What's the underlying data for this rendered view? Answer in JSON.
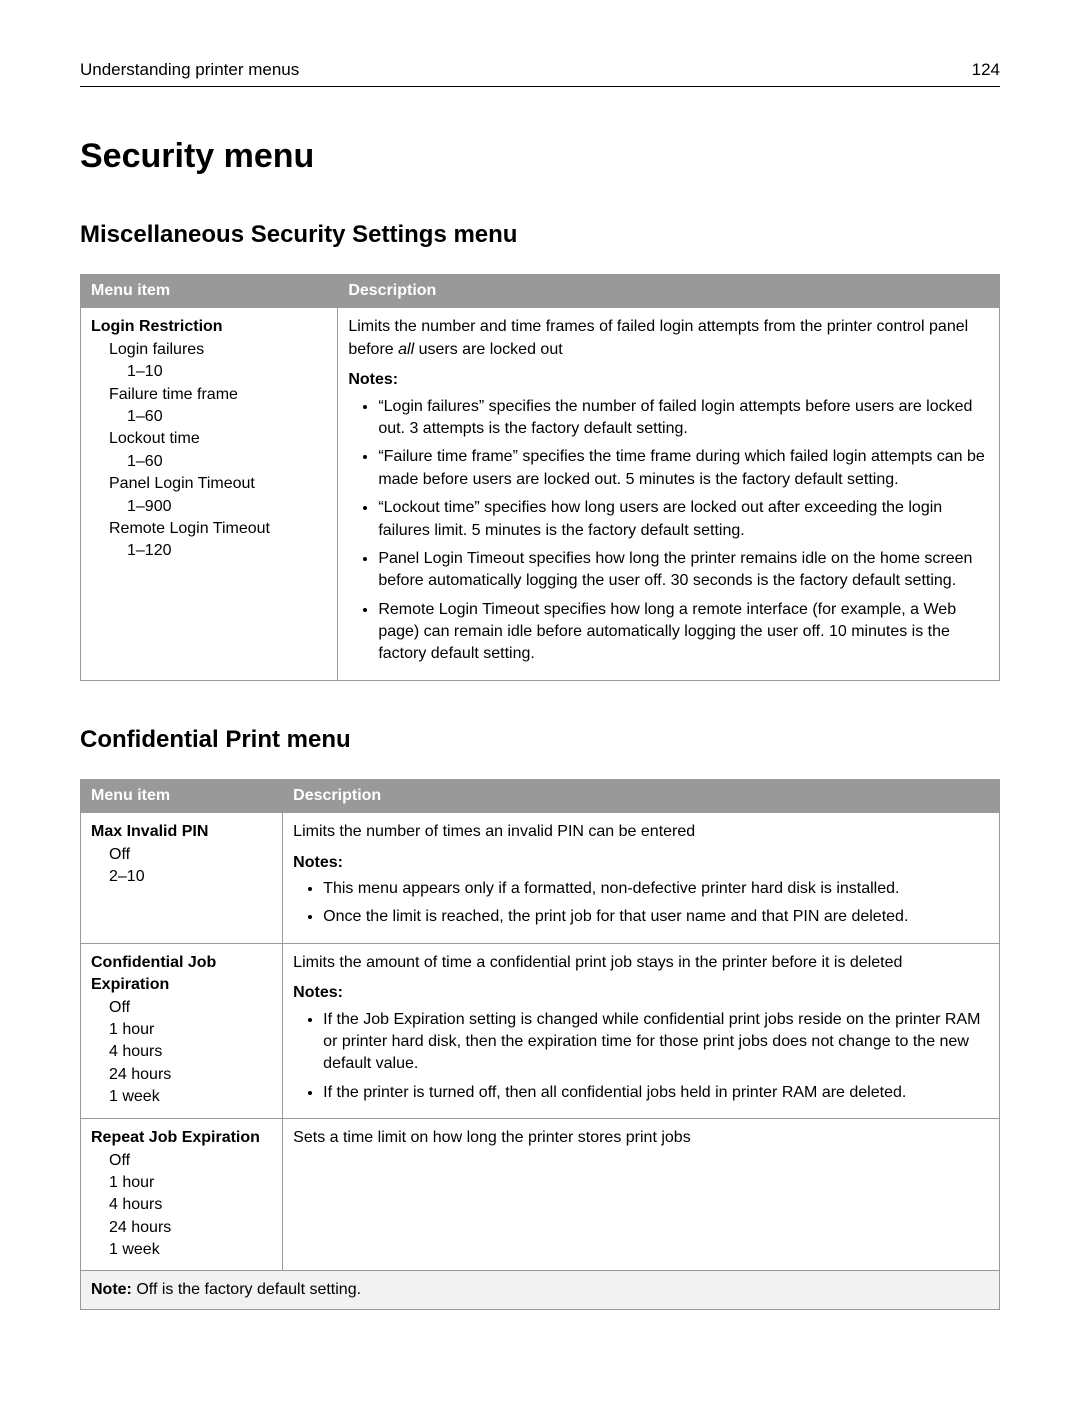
{
  "header": {
    "title": "Understanding printer menus",
    "page": "124"
  },
  "h1": "Security menu",
  "section1": {
    "heading": "Miscellaneous Security Settings menu",
    "cols": [
      "Menu item",
      "Description"
    ],
    "row": {
      "item_title": "Login Restriction",
      "opts": [
        {
          "lvl": 1,
          "t": "Login failures"
        },
        {
          "lvl": 2,
          "t": "1–10"
        },
        {
          "lvl": 1,
          "t": "Failure time frame"
        },
        {
          "lvl": 2,
          "t": "1–60"
        },
        {
          "lvl": 1,
          "t": "Lockout time"
        },
        {
          "lvl": 2,
          "t": "1–60"
        },
        {
          "lvl": 1,
          "t": "Panel Login Timeout"
        },
        {
          "lvl": 2,
          "t": "1–900"
        },
        {
          "lvl": 1,
          "t": "Remote Login Timeout"
        },
        {
          "lvl": 2,
          "t": "1–120"
        }
      ],
      "desc_pre": "Limits the number and time frames of failed login attempts from the printer control panel before ",
      "desc_em": "all",
      "desc_post": " users are locked out",
      "notes_label": "Notes:",
      "notes": [
        "“Login failures” specifies the number of failed login attempts before users are locked out. 3 attempts is the factory default setting.",
        "“Failure time frame” specifies the time frame during which failed login attempts can be made before users are locked out. 5 minutes is the factory default setting.",
        "“Lockout time” specifies how long users are locked out after exceeding the login failures limit. 5 minutes is the factory default setting.",
        "Panel Login Timeout specifies how long the printer remains idle on the home screen before automatically logging the user off. 30 seconds is the factory default setting.",
        "Remote Login Timeout specifies how long a remote interface (for example, a Web page) can remain idle before automatically logging the user off. 10 minutes is the factory default setting."
      ]
    }
  },
  "section2": {
    "heading": "Confidential Print menu",
    "cols": [
      "Menu item",
      "Description"
    ],
    "rows": [
      {
        "item_title": "Max Invalid PIN",
        "opts": [
          {
            "lvl": 1,
            "t": "Off"
          },
          {
            "lvl": 1,
            "t": "2–10"
          }
        ],
        "desc": "Limits the number of times an invalid PIN can be entered",
        "notes_label": "Notes:",
        "notes": [
          "This menu appears only if a formatted, non-defective printer hard disk is installed.",
          "Once the limit is reached, the print job for that user name and that PIN are deleted."
        ]
      },
      {
        "item_title": "Confidential Job Expiration",
        "opts": [
          {
            "lvl": 1,
            "t": "Off"
          },
          {
            "lvl": 1,
            "t": "1 hour"
          },
          {
            "lvl": 1,
            "t": "4 hours"
          },
          {
            "lvl": 1,
            "t": "24 hours"
          },
          {
            "lvl": 1,
            "t": "1 week"
          }
        ],
        "desc": "Limits the amount of time a confidential print job stays in the printer before it is deleted",
        "notes_label": "Notes:",
        "notes": [
          "If the Job Expiration setting is changed while confidential print jobs reside on the printer RAM or printer hard disk, then the expiration time for those print jobs does not change to the new default value.",
          "If the printer is turned off, then all confidential jobs held in printer RAM are deleted."
        ]
      },
      {
        "item_title": "Repeat Job Expiration",
        "opts": [
          {
            "lvl": 1,
            "t": "Off"
          },
          {
            "lvl": 1,
            "t": "1 hour"
          },
          {
            "lvl": 1,
            "t": "4 hours"
          },
          {
            "lvl": 1,
            "t": "24 hours"
          },
          {
            "lvl": 1,
            "t": "1 week"
          }
        ],
        "desc": "Sets a time limit on how long the printer stores print jobs"
      }
    ],
    "footnote_label": "Note:",
    "footnote_text": " Off is the factory default setting."
  }
}
